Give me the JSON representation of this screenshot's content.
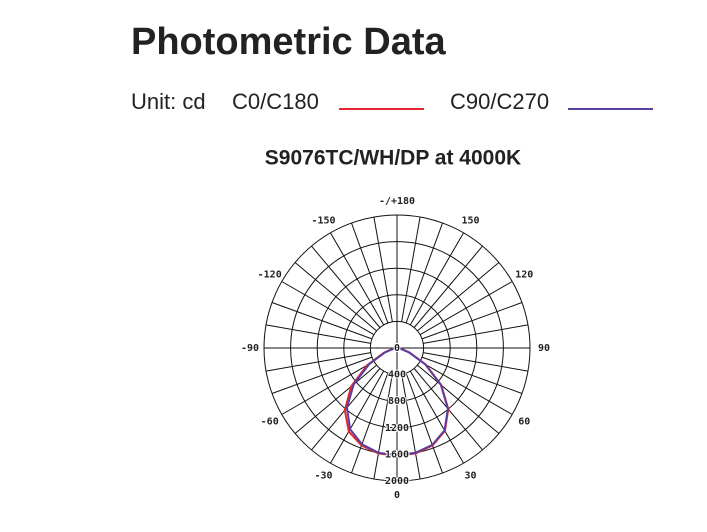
{
  "chart_data": {
    "type": "polar",
    "title": "Photometric Data",
    "unit_label": "Unit: cd",
    "subtitle": "S9076TC/WH/DP at 4000K",
    "x": [
      -90,
      -80,
      -70,
      -60,
      -50,
      -40,
      -30,
      -20,
      -10,
      0,
      10,
      20,
      30,
      40,
      50,
      60,
      70,
      80,
      90
    ],
    "series": [
      {
        "name": "C0/C180",
        "color": "#e8262f",
        "values": [
          0,
          60,
          210,
          520,
          900,
          1220,
          1450,
          1560,
          1610,
          1620,
          1610,
          1560,
          1440,
          1200,
          870,
          500,
          200,
          60,
          0
        ]
      },
      {
        "name": "C90/C270",
        "color": "#5b3fa0",
        "values": [
          0,
          50,
          190,
          480,
          850,
          1170,
          1410,
          1540,
          1600,
          1610,
          1600,
          1550,
          1430,
          1190,
          860,
          490,
          190,
          50,
          0
        ]
      }
    ],
    "rlim": [
      0,
      2000
    ],
    "rticks": [
      0,
      400,
      800,
      1200,
      1600,
      2000
    ],
    "xticks": [
      0,
      30,
      60,
      90,
      120,
      150,
      {
        "value": 180,
        "label": "-/+180"
      },
      -150,
      -120,
      -90,
      -60,
      -30
    ],
    "grid_step": 10,
    "grid": true
  }
}
